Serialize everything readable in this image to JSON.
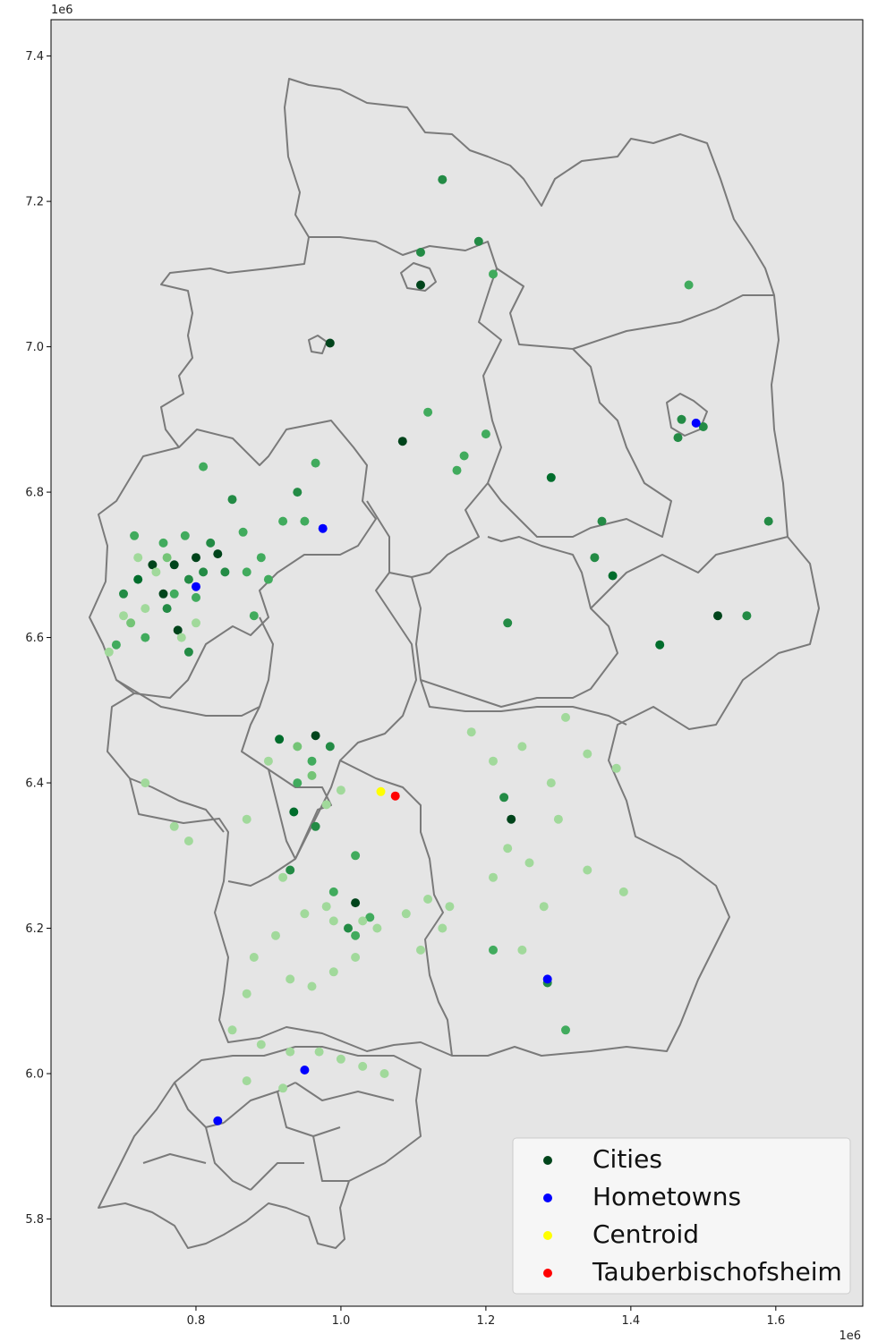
{
  "chart_data": {
    "type": "scatter",
    "title": "",
    "xlabel": "",
    "ylabel": "",
    "x_offset_label": "1e6",
    "y_offset_label": "1e6",
    "xlim": [
      0.6,
      1.72
    ],
    "ylim": [
      5.68,
      7.45
    ],
    "x_ticks": [
      {
        "value": 0.8,
        "label": "0.8"
      },
      {
        "value": 1.0,
        "label": "1.0"
      },
      {
        "value": 1.2,
        "label": "1.2"
      },
      {
        "value": 1.4,
        "label": "1.4"
      },
      {
        "value": 1.6,
        "label": "1.6"
      }
    ],
    "y_ticks": [
      {
        "value": 5.8,
        "label": "5.8"
      },
      {
        "value": 6.0,
        "label": "6.0"
      },
      {
        "value": 6.2,
        "label": "6.2"
      },
      {
        "value": 6.4,
        "label": "6.4"
      },
      {
        "value": 6.6,
        "label": "6.6"
      },
      {
        "value": 6.8,
        "label": "6.8"
      },
      {
        "value": 7.0,
        "label": "7.0"
      },
      {
        "value": 7.2,
        "label": "7.2"
      },
      {
        "value": 7.4,
        "label": "7.4"
      }
    ],
    "grid": false,
    "legend_position": "lower-right",
    "colors": {
      "background": "#e5e5e5",
      "border": "#7a7a7a",
      "cities": "#00441b",
      "hometowns": "#0000ff",
      "centroid": "#ffff00",
      "tauberbischofsheim": "#ff0000"
    },
    "series": [
      {
        "name": "Cities",
        "color": "#00441b",
        "colormap": "Greens",
        "points": [
          [
            1.11,
            7.085
          ],
          [
            0.985,
            7.005
          ],
          [
            1.085,
            6.87
          ],
          [
            0.74,
            6.7
          ],
          [
            0.77,
            6.7
          ],
          [
            0.8,
            6.71
          ],
          [
            0.83,
            6.715
          ],
          [
            0.755,
            6.66
          ],
          [
            0.775,
            6.61
          ],
          [
            0.79,
            6.68
          ],
          [
            0.81,
            6.69
          ],
          [
            0.72,
            6.68
          ],
          [
            0.7,
            6.66
          ],
          [
            0.76,
            6.64
          ],
          [
            0.79,
            6.58
          ],
          [
            0.73,
            6.6
          ],
          [
            0.69,
            6.59
          ],
          [
            0.715,
            6.74
          ],
          [
            0.755,
            6.73
          ],
          [
            0.785,
            6.74
          ],
          [
            0.82,
            6.73
          ],
          [
            0.84,
            6.69
          ],
          [
            0.77,
            6.66
          ],
          [
            0.8,
            6.655
          ],
          [
            0.85,
            6.79
          ],
          [
            0.865,
            6.745
          ],
          [
            0.81,
            6.835
          ],
          [
            0.89,
            6.71
          ],
          [
            0.92,
            6.76
          ],
          [
            0.94,
            6.8
          ],
          [
            0.965,
            6.84
          ],
          [
            0.95,
            6.76
          ],
          [
            0.9,
            6.68
          ],
          [
            0.88,
            6.63
          ],
          [
            0.87,
            6.69
          ],
          [
            0.965,
            6.465
          ],
          [
            0.915,
            6.46
          ],
          [
            0.935,
            6.36
          ],
          [
            0.94,
            6.4
          ],
          [
            0.985,
            6.45
          ],
          [
            0.96,
            6.43
          ],
          [
            0.93,
            6.28
          ],
          [
            0.965,
            6.34
          ],
          [
            1.02,
            6.235
          ],
          [
            1.01,
            6.2
          ],
          [
            1.02,
            6.19
          ],
          [
            1.02,
            6.3
          ],
          [
            0.99,
            6.25
          ],
          [
            1.04,
            6.215
          ],
          [
            1.235,
            6.35
          ],
          [
            1.225,
            6.38
          ],
          [
            1.21,
            6.17
          ],
          [
            1.285,
            6.125
          ],
          [
            1.31,
            6.06
          ],
          [
            1.23,
            6.62
          ],
          [
            1.29,
            6.82
          ],
          [
            1.35,
            6.71
          ],
          [
            1.375,
            6.685
          ],
          [
            1.36,
            6.76
          ],
          [
            1.44,
            6.59
          ],
          [
            1.52,
            6.63
          ],
          [
            1.56,
            6.63
          ],
          [
            1.465,
            6.875
          ],
          [
            1.47,
            6.9
          ],
          [
            1.5,
            6.89
          ],
          [
            1.59,
            6.76
          ],
          [
            1.11,
            7.13
          ],
          [
            1.19,
            7.145
          ],
          [
            1.14,
            7.23
          ],
          [
            1.21,
            7.1
          ],
          [
            1.48,
            7.085
          ],
          [
            1.12,
            6.91
          ],
          [
            1.17,
            6.85
          ],
          [
            1.16,
            6.83
          ],
          [
            1.2,
            6.88
          ],
          [
            0.72,
            6.71
          ],
          [
            0.745,
            6.69
          ],
          [
            0.76,
            6.71
          ],
          [
            0.73,
            6.64
          ],
          [
            0.7,
            6.63
          ],
          [
            0.68,
            6.58
          ],
          [
            0.71,
            6.62
          ],
          [
            0.8,
            6.62
          ],
          [
            0.78,
            6.6
          ],
          [
            1.0,
            6.39
          ],
          [
            0.98,
            6.37
          ],
          [
            0.96,
            6.41
          ],
          [
            0.94,
            6.45
          ],
          [
            0.9,
            6.43
          ],
          [
            0.87,
            6.35
          ],
          [
            0.79,
            6.32
          ],
          [
            0.77,
            6.34
          ],
          [
            0.73,
            6.4
          ],
          [
            1.14,
            6.2
          ],
          [
            1.11,
            6.17
          ],
          [
            1.15,
            6.23
          ],
          [
            1.12,
            6.24
          ],
          [
            1.09,
            6.22
          ],
          [
            1.05,
            6.2
          ],
          [
            1.03,
            6.21
          ],
          [
            0.99,
            6.21
          ],
          [
            0.98,
            6.23
          ],
          [
            0.95,
            6.22
          ],
          [
            0.92,
            6.27
          ],
          [
            0.88,
            6.16
          ],
          [
            0.91,
            6.19
          ],
          [
            0.93,
            6.13
          ],
          [
            0.96,
            6.12
          ],
          [
            0.99,
            6.14
          ],
          [
            1.02,
            6.16
          ],
          [
            0.87,
            6.11
          ],
          [
            1.23,
            6.31
          ],
          [
            1.21,
            6.27
          ],
          [
            1.26,
            6.29
          ],
          [
            1.28,
            6.23
          ],
          [
            1.25,
            6.17
          ],
          [
            1.34,
            6.28
          ],
          [
            1.39,
            6.25
          ],
          [
            1.3,
            6.35
          ],
          [
            1.25,
            6.45
          ],
          [
            1.21,
            6.43
          ],
          [
            1.18,
            6.47
          ],
          [
            1.31,
            6.49
          ],
          [
            1.34,
            6.44
          ],
          [
            1.29,
            6.4
          ],
          [
            1.38,
            6.42
          ],
          [
            0.85,
            6.06
          ],
          [
            0.89,
            6.04
          ],
          [
            0.93,
            6.03
          ],
          [
            0.97,
            6.03
          ],
          [
            1.0,
            6.02
          ],
          [
            1.03,
            6.01
          ],
          [
            1.06,
            6.0
          ],
          [
            0.92,
            5.98
          ],
          [
            0.87,
            5.99
          ]
        ],
        "shades": [
          9,
          9,
          8,
          8,
          9,
          8,
          8,
          9,
          9,
          6,
          6,
          7,
          6,
          6,
          6,
          5,
          5,
          5,
          5,
          5,
          6,
          6,
          5,
          5,
          6,
          5,
          5,
          5,
          5,
          6,
          5,
          5,
          5,
          5,
          5,
          8,
          7,
          7,
          5,
          6,
          5,
          6,
          6,
          8,
          6,
          5,
          5,
          5,
          5,
          8,
          6,
          5,
          6,
          5,
          6,
          7,
          6,
          7,
          6,
          7,
          8,
          6,
          6,
          6,
          6,
          6,
          6,
          6,
          6,
          5,
          5,
          5,
          5,
          5,
          5,
          3,
          3,
          4,
          3,
          3,
          3,
          4,
          3,
          3,
          3,
          3,
          4,
          4,
          3,
          3,
          3,
          3,
          3,
          3,
          3,
          3,
          3,
          3,
          3,
          3,
          3,
          3,
          3,
          3,
          3,
          3,
          3,
          3,
          3,
          3,
          3,
          3,
          3,
          3,
          3,
          3,
          3,
          3,
          3,
          3,
          3,
          3,
          3,
          3,
          3,
          3,
          3,
          3,
          3,
          3,
          3,
          3,
          3,
          3,
          3
        ]
      },
      {
        "name": "Hometowns",
        "color": "#0000ff",
        "points": [
          [
            0.975,
            6.75
          ],
          [
            0.8,
            6.67
          ],
          [
            1.49,
            6.895
          ],
          [
            1.285,
            6.13
          ],
          [
            0.95,
            6.005
          ],
          [
            0.83,
            5.935
          ]
        ]
      },
      {
        "name": "Centroid",
        "color": "#ffff00",
        "points": [
          [
            1.055,
            6.388
          ]
        ]
      },
      {
        "name": "Tauberbischofsheim",
        "color": "#ff0000",
        "points": [
          [
            1.075,
            6.382
          ]
        ]
      }
    ]
  }
}
